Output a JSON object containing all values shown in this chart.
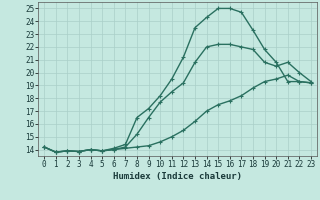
{
  "xlabel": "Humidex (Indice chaleur)",
  "bg_color": "#c5e8e0",
  "grid_color": "#aacfc8",
  "line_color": "#2a7060",
  "xlim": [
    -0.5,
    23.5
  ],
  "ylim": [
    13.5,
    25.5
  ],
  "xticks": [
    0,
    1,
    2,
    3,
    4,
    5,
    6,
    7,
    8,
    9,
    10,
    11,
    12,
    13,
    14,
    15,
    16,
    17,
    18,
    19,
    20,
    21,
    22,
    23
  ],
  "yticks": [
    14,
    15,
    16,
    17,
    18,
    19,
    20,
    21,
    22,
    23,
    24,
    25
  ],
  "line1_x": [
    0,
    1,
    2,
    3,
    4,
    5,
    6,
    7,
    8,
    9,
    10,
    11,
    12,
    13,
    14,
    15,
    16,
    17,
    18,
    19,
    20,
    21,
    22,
    23
  ],
  "line1_y": [
    14.2,
    13.8,
    13.9,
    13.85,
    14.0,
    13.9,
    14.0,
    14.1,
    14.2,
    14.3,
    14.6,
    15.0,
    15.5,
    16.2,
    17.0,
    17.5,
    17.8,
    18.2,
    18.8,
    19.3,
    19.5,
    19.8,
    19.3,
    19.2
  ],
  "line2_x": [
    0,
    1,
    2,
    3,
    4,
    5,
    6,
    7,
    8,
    9,
    10,
    11,
    12,
    13,
    14,
    15,
    16,
    17,
    18,
    19,
    20,
    21,
    22,
    23
  ],
  "line2_y": [
    14.2,
    13.8,
    13.9,
    13.85,
    14.0,
    13.9,
    14.0,
    14.2,
    15.2,
    16.5,
    17.7,
    18.5,
    19.2,
    20.8,
    22.0,
    22.2,
    22.2,
    22.0,
    21.8,
    20.8,
    20.5,
    20.8,
    20.0,
    19.3
  ],
  "line3_x": [
    0,
    1,
    2,
    3,
    4,
    5,
    6,
    7,
    8,
    9,
    10,
    11,
    12,
    13,
    14,
    15,
    16,
    17,
    18,
    19,
    20,
    21,
    22,
    23
  ],
  "line3_y": [
    14.2,
    13.8,
    13.9,
    13.85,
    14.0,
    13.9,
    14.1,
    14.4,
    16.5,
    17.2,
    18.2,
    19.5,
    21.2,
    23.5,
    24.3,
    25.0,
    25.0,
    24.7,
    23.3,
    21.8,
    20.8,
    19.3,
    19.3,
    19.2
  ],
  "marker": "+",
  "markersize": 3,
  "linewidth": 1.0
}
